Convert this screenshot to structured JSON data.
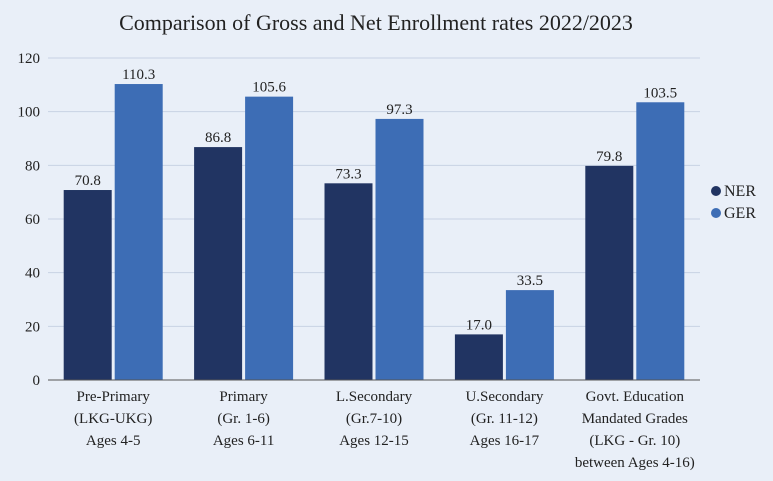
{
  "chart_data": {
    "type": "bar",
    "title": "Comparison of Gross and Net Enrollment rates 2022/2023",
    "xlabel": "",
    "ylabel": "",
    "ylim": [
      0,
      120
    ],
    "yticks": [
      0,
      20,
      40,
      60,
      80,
      100,
      120
    ],
    "grid": true,
    "legend_position": "right",
    "categories": [
      [
        "Pre-Primary",
        "(LKG-UKG)",
        "Ages 4-5"
      ],
      [
        "Primary",
        "(Gr. 1-6)",
        "Ages 6-11"
      ],
      [
        "L.Secondary",
        "(Gr.7-10)",
        "Ages 12-15"
      ],
      [
        "U.Secondary",
        "(Gr. 11-12)",
        "Ages 16-17"
      ],
      [
        "Govt. Education",
        "Mandated Grades",
        "(LKG - Gr. 10)",
        "between Ages 4-16)"
      ]
    ],
    "series": [
      {
        "name": "NER",
        "color": "#213462",
        "values": [
          70.8,
          86.8,
          73.3,
          17.0,
          79.8
        ],
        "labels": [
          "70.8",
          "86.8",
          "73.3",
          "17.0",
          "79.8"
        ]
      },
      {
        "name": "GER",
        "color": "#3d6db5",
        "values": [
          110.3,
          105.6,
          97.3,
          33.5,
          103.5
        ],
        "labels": [
          "110.3",
          "105.6",
          "97.3",
          "33.5",
          "103.5"
        ]
      }
    ],
    "colors": {
      "background": "#e9eff8",
      "gridline": "#c8d2e3",
      "axis": "#555555"
    }
  }
}
